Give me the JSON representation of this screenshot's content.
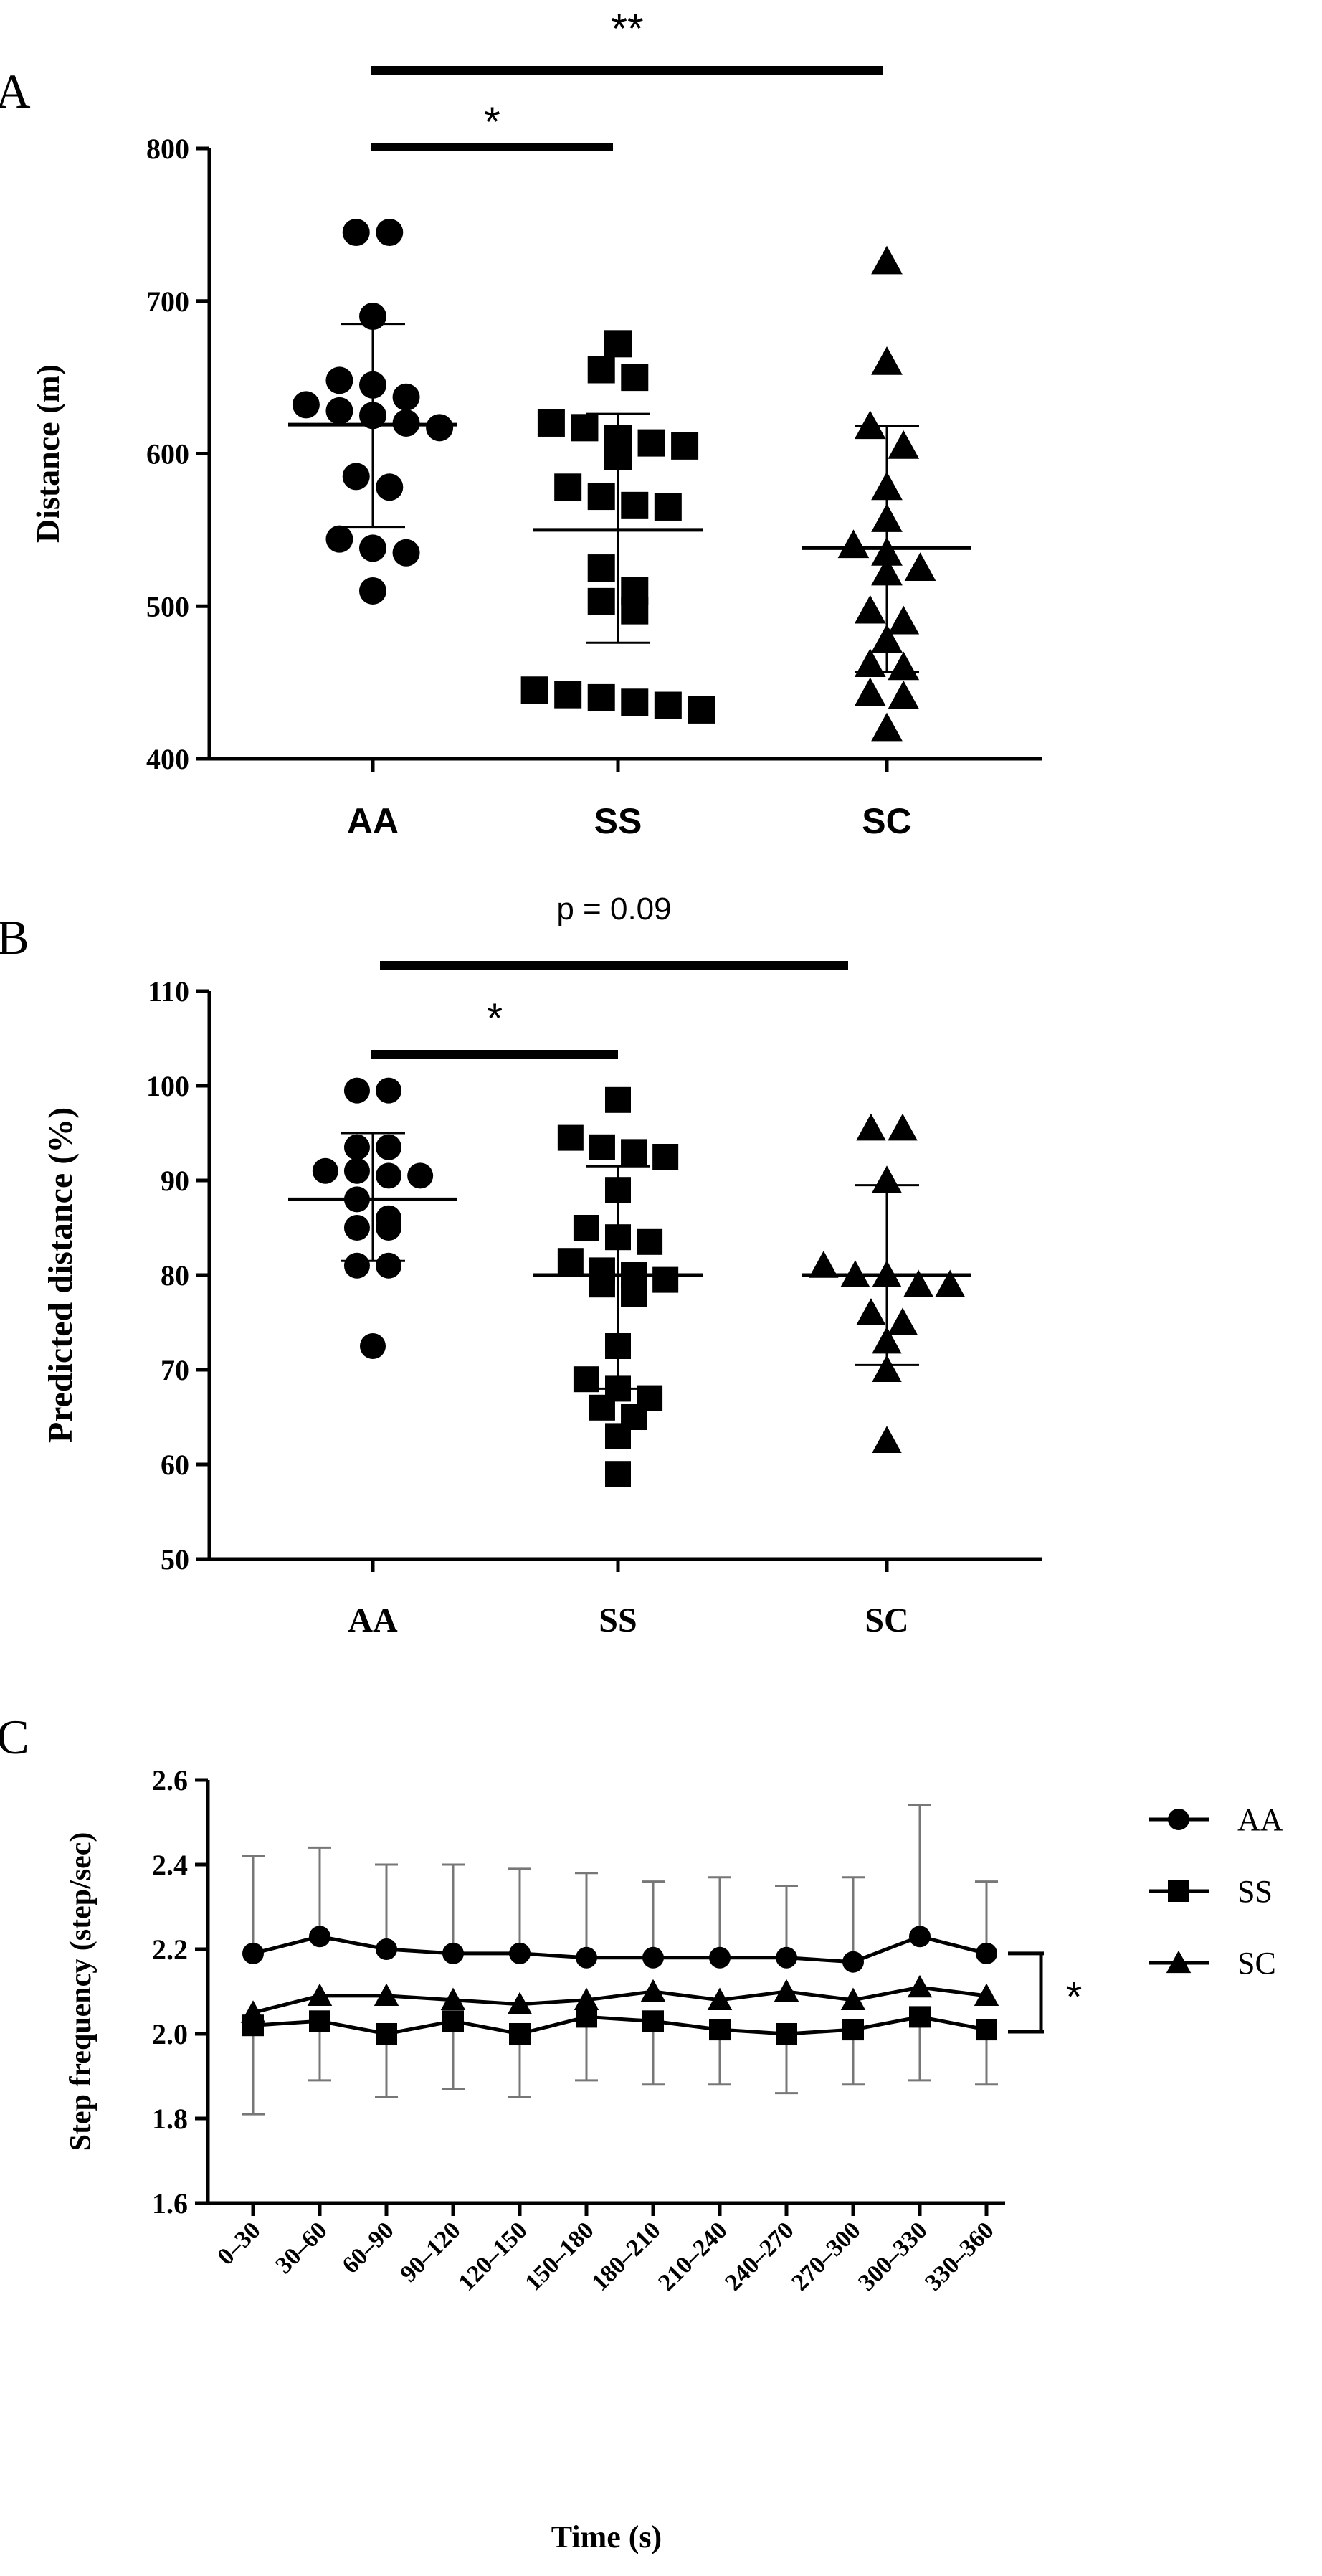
{
  "chart_data": [
    {
      "panel": "A",
      "type": "scatter",
      "ylabel": "Distance (m)",
      "ylim": [
        400,
        800
      ],
      "yticks": [
        400,
        500,
        600,
        700,
        800
      ],
      "categories": [
        "AA",
        "SS",
        "SC"
      ],
      "series": [
        {
          "name": "AA",
          "marker": "circle",
          "mean": 619,
          "sd_upper": 685,
          "sd_lower": 552,
          "values": [
            745,
            745,
            690,
            648,
            645,
            637,
            632,
            628,
            625,
            620,
            617,
            585,
            578,
            544,
            538,
            535,
            510
          ]
        },
        {
          "name": "SS",
          "marker": "square",
          "mean": 550,
          "sd_upper": 626,
          "sd_lower": 476,
          "values": [
            672,
            655,
            650,
            620,
            617,
            610,
            607,
            605,
            598,
            578,
            572,
            566,
            565,
            525,
            510,
            503,
            497,
            445,
            442,
            440,
            437,
            435,
            432
          ]
        },
        {
          "name": "SC",
          "marker": "triangle",
          "mean": 538,
          "sd_upper": 618,
          "sd_lower": 457,
          "values": [
            726,
            660,
            618,
            605,
            578,
            557,
            540,
            535,
            525,
            522,
            497,
            490,
            478,
            462,
            460,
            443,
            441,
            420
          ]
        }
      ],
      "significance": [
        {
          "from": "AA",
          "to": "SS",
          "label": "*"
        },
        {
          "from": "AA",
          "to": "SC",
          "label": "**"
        }
      ]
    },
    {
      "panel": "B",
      "type": "scatter",
      "ylabel": "Predicted distance (%)",
      "ylim": [
        50,
        110
      ],
      "yticks": [
        50,
        60,
        70,
        80,
        90,
        100,
        110
      ],
      "categories": [
        "AA",
        "SS",
        "SC"
      ],
      "series": [
        {
          "name": "AA",
          "marker": "circle",
          "mean": 88,
          "sd_upper": 95,
          "sd_lower": 81.5,
          "values": [
            99.5,
            99.5,
            93.5,
            93.5,
            91,
            91,
            90.5,
            90.5,
            88,
            86,
            85,
            85,
            81,
            81,
            72.5
          ]
        },
        {
          "name": "SS",
          "marker": "square",
          "mean": 80,
          "sd_upper": 91.5,
          "sd_lower": 68,
          "values": [
            98.5,
            94.5,
            93.5,
            93,
            92.5,
            89,
            85,
            84,
            83.5,
            81.5,
            80.5,
            80,
            79.5,
            79,
            78,
            72.5,
            69,
            68,
            67,
            66,
            65,
            63,
            59
          ]
        },
        {
          "name": "SC",
          "marker": "triangle",
          "mean": 80,
          "sd_upper": 89.5,
          "sd_lower": 70.5,
          "values": [
            95.5,
            95.5,
            90,
            81,
            80,
            80,
            79,
            79,
            76,
            75,
            73,
            70,
            62.5
          ]
        }
      ],
      "significance": [
        {
          "from": "AA",
          "to": "SS",
          "label": "*"
        },
        {
          "from": "AA",
          "to": "SC",
          "label": "p = 0.09"
        }
      ]
    },
    {
      "panel": "C",
      "type": "line",
      "xlabel": "Time (s)",
      "ylabel": "Step frequency (step/sec)",
      "ylim": [
        1.6,
        2.6
      ],
      "yticks": [
        "1.6",
        "1.8",
        "2.0",
        "2.2",
        "2.4",
        "2.6"
      ],
      "x": [
        "0–30",
        "30–60",
        "60–90",
        "90–120",
        "120–150",
        "150–180",
        "180–210",
        "210–240",
        "240–270",
        "270–300",
        "300–330",
        "330–360"
      ],
      "series": [
        {
          "name": "AA",
          "marker": "circle",
          "values": [
            2.19,
            2.23,
            2.2,
            2.19,
            2.19,
            2.18,
            2.18,
            2.18,
            2.18,
            2.17,
            2.23,
            2.19
          ],
          "err_upper": [
            2.42,
            2.44,
            2.4,
            2.4,
            2.39,
            2.38,
            2.36,
            2.37,
            2.35,
            2.37,
            2.54,
            2.36
          ]
        },
        {
          "name": "SS",
          "marker": "square",
          "values": [
            2.02,
            2.03,
            2.0,
            2.03,
            2.0,
            2.04,
            2.03,
            2.01,
            2.0,
            2.01,
            2.04,
            2.01
          ],
          "err_lower": [
            1.81,
            1.89,
            1.85,
            1.87,
            1.85,
            1.89,
            1.88,
            1.88,
            1.86,
            1.88,
            1.89,
            1.88
          ]
        },
        {
          "name": "SC",
          "marker": "triangle",
          "values": [
            2.05,
            2.09,
            2.09,
            2.08,
            2.07,
            2.08,
            2.1,
            2.08,
            2.1,
            2.08,
            2.11,
            2.09
          ]
        }
      ],
      "significance": [
        {
          "between": "AA vs SS",
          "label": "*"
        }
      ],
      "legend": [
        "AA",
        "SS",
        "SC"
      ]
    }
  ],
  "panel_labels": [
    "A",
    "B",
    "C"
  ]
}
